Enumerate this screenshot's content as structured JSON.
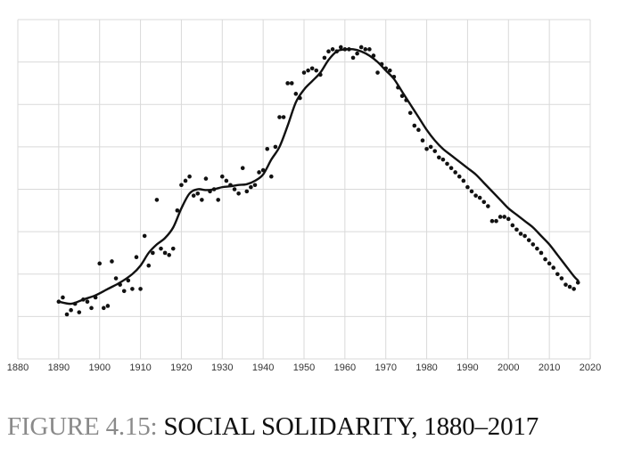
{
  "caption": {
    "lead": "FIGURE 4.15:",
    "title": "SOCIAL SOLIDARITY, 1880–2017"
  },
  "colors": {
    "grid": "#d9d9d9",
    "series": "#111111",
    "caption_lead": "#8a8a8a",
    "caption_title": "#111111"
  },
  "chart_data": {
    "type": "scatter",
    "xlim": [
      1880,
      2020
    ],
    "ylim": [
      0,
      8
    ],
    "xticks": [
      1880,
      1890,
      1900,
      1910,
      1920,
      1930,
      1940,
      1950,
      1960,
      1970,
      1980,
      1990,
      2000,
      2010,
      2020
    ],
    "ytick_labels": false,
    "grid": true,
    "series": [
      {
        "kind": "points",
        "x": [
          1890,
          1891,
          1892,
          1893,
          1894,
          1895,
          1896,
          1897,
          1898,
          1899,
          1900,
          1901,
          1902,
          1903,
          1904,
          1905,
          1906,
          1907,
          1908,
          1909,
          1910,
          1911,
          1912,
          1913,
          1914,
          1915,
          1916,
          1917,
          1918,
          1919,
          1920,
          1921,
          1922,
          1923,
          1924,
          1925,
          1926,
          1927,
          1928,
          1929,
          1930,
          1931,
          1932,
          1933,
          1934,
          1935,
          1936,
          1937,
          1938,
          1939,
          1940,
          1941,
          1942,
          1943,
          1944,
          1945,
          1946,
          1947,
          1948,
          1949,
          1950,
          1951,
          1952,
          1953,
          1954,
          1955,
          1956,
          1957,
          1958,
          1959,
          1960,
          1961,
          1962,
          1963,
          1964,
          1965,
          1966,
          1967,
          1968,
          1969,
          1970,
          1971,
          1972,
          1973,
          1974,
          1975,
          1976,
          1977,
          1978,
          1979,
          1980,
          1981,
          1982,
          1983,
          1984,
          1985,
          1986,
          1987,
          1988,
          1989,
          1990,
          1991,
          1992,
          1993,
          1994,
          1995,
          1996,
          1997,
          1998,
          1999,
          2000,
          2001,
          2002,
          2003,
          2004,
          2005,
          2006,
          2007,
          2008,
          2009,
          2010,
          2011,
          2012,
          2013,
          2014,
          2015,
          2016,
          2017
        ],
        "y": [
          1.35,
          1.45,
          1.05,
          1.15,
          1.3,
          1.1,
          1.4,
          1.35,
          1.2,
          1.45,
          2.25,
          1.2,
          1.25,
          2.3,
          1.9,
          1.75,
          1.6,
          1.85,
          1.65,
          2.4,
          1.65,
          2.9,
          2.2,
          2.5,
          3.75,
          2.6,
          2.5,
          2.45,
          2.6,
          3.5,
          4.1,
          4.2,
          4.3,
          3.85,
          3.9,
          3.75,
          4.25,
          3.95,
          4.0,
          3.75,
          4.3,
          4.2,
          4.1,
          4.0,
          3.9,
          4.5,
          3.95,
          4.05,
          4.1,
          4.4,
          4.45,
          4.95,
          4.3,
          5.0,
          5.7,
          5.7,
          6.5,
          6.5,
          6.25,
          6.15,
          6.75,
          6.8,
          6.85,
          6.8,
          6.7,
          7.1,
          7.25,
          7.3,
          7.25,
          7.35,
          7.3,
          7.3,
          7.1,
          7.2,
          7.35,
          7.3,
          7.3,
          7.15,
          6.75,
          6.95,
          6.85,
          6.8,
          6.65,
          6.4,
          6.2,
          6.1,
          5.8,
          5.5,
          5.4,
          5.15,
          4.95,
          5.0,
          4.9,
          4.75,
          4.7,
          4.6,
          4.5,
          4.4,
          4.3,
          4.2,
          4.05,
          3.95,
          3.85,
          3.8,
          3.7,
          3.6,
          3.25,
          3.25,
          3.35,
          3.35,
          3.3,
          3.15,
          3.05,
          2.95,
          2.9,
          2.8,
          2.7,
          2.6,
          2.5,
          2.35,
          2.25,
          2.15,
          2.0,
          1.9,
          1.75,
          1.7,
          1.65,
          1.8
        ]
      },
      {
        "kind": "smooth",
        "x": [
          1890,
          1893,
          1896,
          1899,
          1902,
          1905,
          1908,
          1910,
          1912,
          1914,
          1916,
          1918,
          1920,
          1922,
          1924,
          1926,
          1928,
          1930,
          1932,
          1934,
          1936,
          1938,
          1940,
          1942,
          1944,
          1946,
          1948,
          1950,
          1952,
          1954,
          1956,
          1958,
          1960,
          1962,
          1964,
          1966,
          1968,
          1970,
          1972,
          1974,
          1976,
          1978,
          1980,
          1982,
          1984,
          1986,
          1988,
          1990,
          1992,
          1994,
          1996,
          1998,
          2000,
          2002,
          2004,
          2006,
          2008,
          2010,
          2012,
          2014,
          2016,
          2017
        ],
        "y": [
          1.35,
          1.3,
          1.4,
          1.5,
          1.65,
          1.8,
          2.0,
          2.2,
          2.5,
          2.7,
          2.85,
          3.1,
          3.55,
          3.9,
          4.0,
          3.98,
          4.0,
          4.05,
          4.07,
          4.1,
          4.12,
          4.2,
          4.35,
          4.7,
          5.0,
          5.5,
          6.05,
          6.35,
          6.55,
          6.75,
          7.05,
          7.25,
          7.3,
          7.3,
          7.25,
          7.15,
          7.0,
          6.8,
          6.6,
          6.3,
          6.0,
          5.7,
          5.4,
          5.15,
          4.95,
          4.8,
          4.65,
          4.5,
          4.35,
          4.15,
          3.95,
          3.75,
          3.55,
          3.4,
          3.25,
          3.1,
          2.9,
          2.7,
          2.45,
          2.2,
          1.95,
          1.85
        ]
      }
    ]
  }
}
